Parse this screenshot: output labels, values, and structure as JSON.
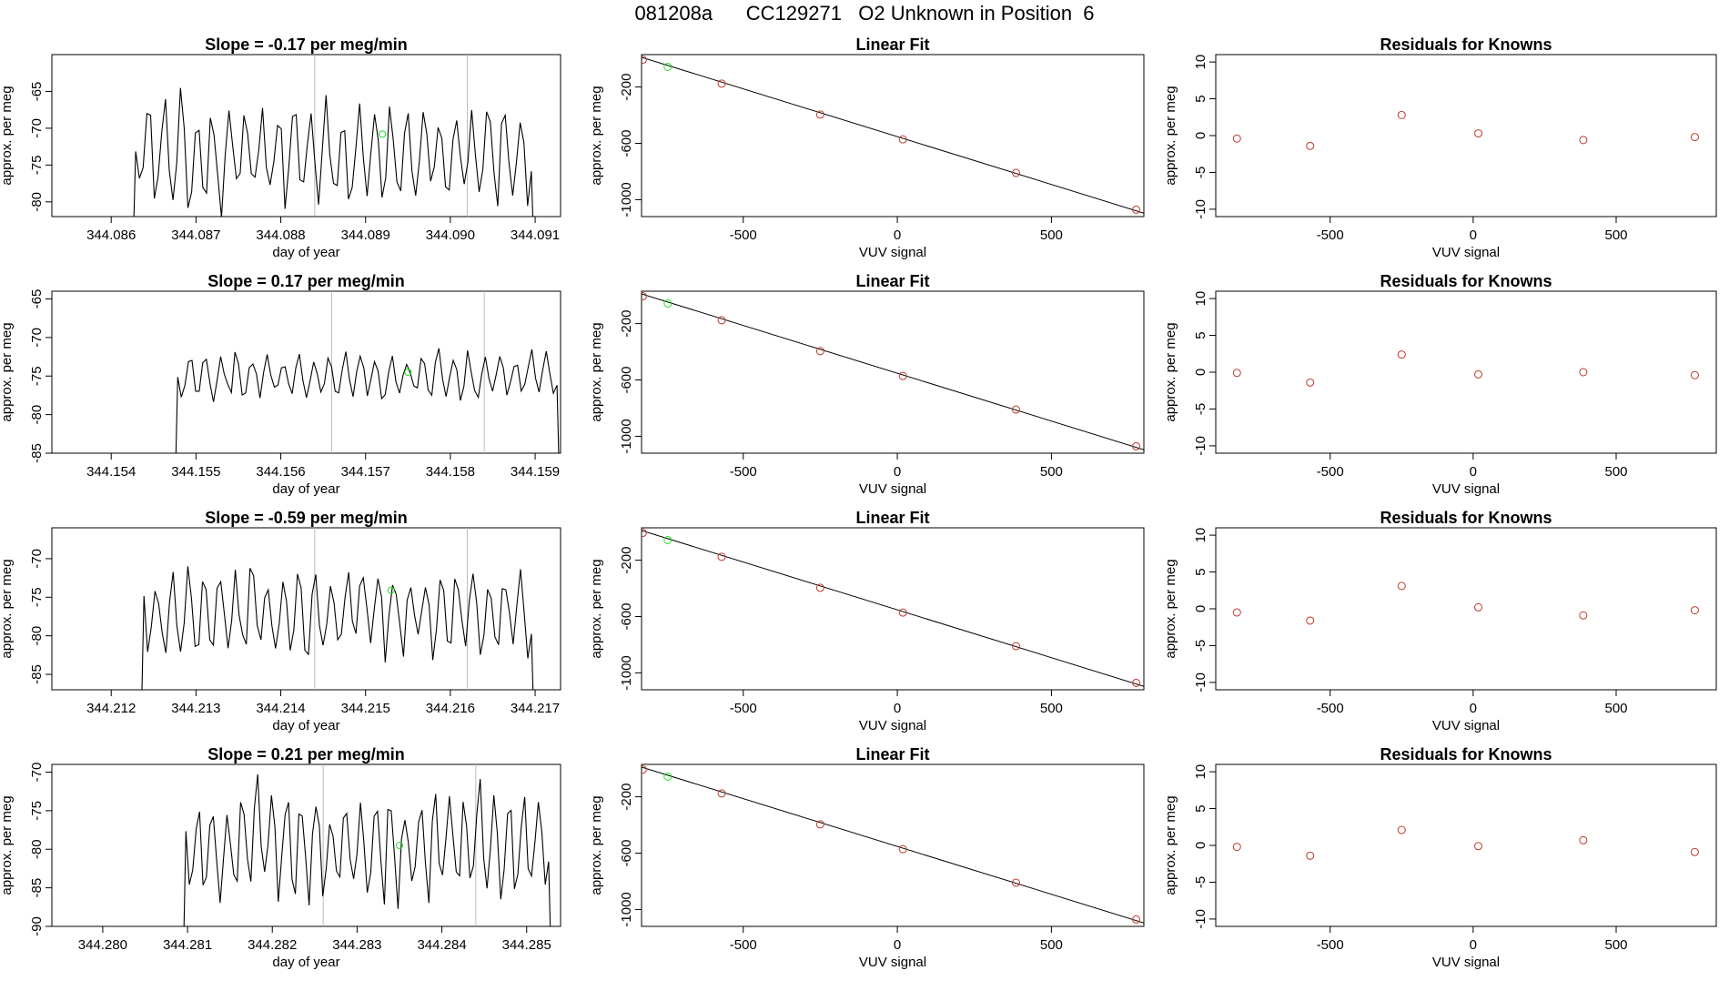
{
  "page_title": "081208a      CC129271   O2 Unknown in Position  6",
  "colors": {
    "trace": "#000000",
    "fit_line": "#000000",
    "known_points": "#c0392b",
    "unknown_point": "#22dd22",
    "vertical_markers": "#bbbbbb"
  },
  "chart_data": [
    {
      "type": "line",
      "row": 1,
      "title": "Slope =  -0.17  per meg/min",
      "xlabel": "day of year",
      "ylabel": "approx. per meg",
      "xlim": [
        344.0853,
        344.0913
      ],
      "ylim": [
        -82,
        -60
      ],
      "x_ticks": [
        344.086,
        344.087,
        344.088,
        344.089,
        344.09,
        344.091
      ],
      "x_tick_labels": [
        "344.086",
        "344.087",
        "344.088",
        "344.089",
        "344.090",
        "344.091"
      ],
      "y_ticks": [
        -80,
        -75,
        -70,
        -65
      ],
      "y_tick_labels": [
        "-80",
        "-75",
        "-70",
        "-65"
      ],
      "x_start": 344.0862,
      "x_end": 344.091,
      "n_points": 110,
      "trace_baseline": -73.5,
      "trace_amplitude": 7,
      "vertical_lines": [
        344.0884,
        344.0902
      ],
      "unknown_point": {
        "x": 344.0892,
        "y": -70.8
      }
    },
    {
      "type": "line",
      "row": 2,
      "title": "Slope =  0.17  per meg/min",
      "xlabel": "day of year",
      "ylabel": "approx. per meg",
      "xlim": [
        344.1533,
        344.1593
      ],
      "ylim": [
        -85,
        -64
      ],
      "x_ticks": [
        344.154,
        344.155,
        344.156,
        344.157,
        344.158,
        344.159
      ],
      "x_tick_labels": [
        "344.154",
        "344.155",
        "344.156",
        "344.157",
        "344.158",
        "344.159"
      ],
      "y_ticks": [
        -85,
        -80,
        -75,
        -70,
        -65
      ],
      "y_tick_labels": [
        "-85",
        "-80",
        "-75",
        "-70",
        "-65"
      ],
      "x_start": 344.1547,
      "x_end": 344.1593,
      "n_points": 110,
      "trace_baseline": -75,
      "trace_amplitude": 3,
      "vertical_lines": [
        344.1566,
        344.1584
      ],
      "unknown_point": {
        "x": 344.1575,
        "y": -74.5
      }
    },
    {
      "type": "line",
      "row": 3,
      "title": "Slope =  -0.59  per meg/min",
      "xlabel": "day of year",
      "ylabel": "approx. per meg",
      "xlim": [
        344.2113,
        344.2173
      ],
      "ylim": [
        -87,
        -66
      ],
      "x_ticks": [
        344.212,
        344.213,
        344.214,
        344.215,
        344.216,
        344.217
      ],
      "x_tick_labels": [
        "344.212",
        "344.213",
        "344.214",
        "344.215",
        "344.216",
        "344.217"
      ],
      "y_ticks": [
        -85,
        -80,
        -75,
        -70
      ],
      "y_tick_labels": [
        "-85",
        "-80",
        "-75",
        "-70"
      ],
      "x_start": 344.2123,
      "x_end": 344.217,
      "n_points": 110,
      "trace_baseline": -77,
      "trace_amplitude": 6,
      "vertical_lines": [
        344.2144,
        344.2162
      ],
      "unknown_point": {
        "x": 344.2153,
        "y": -74.1
      }
    },
    {
      "type": "line",
      "row": 4,
      "title": "Slope =  0.21  per meg/min",
      "xlabel": "day of year",
      "ylabel": "approx. per meg",
      "xlim": [
        344.2794,
        344.2854
      ],
      "ylim": [
        -90,
        -69
      ],
      "x_ticks": [
        344.28,
        344.281,
        344.282,
        344.283,
        344.284,
        344.285
      ],
      "x_tick_labels": [
        "344.280",
        "344.281",
        "344.282",
        "344.283",
        "344.284",
        "344.285"
      ],
      "y_ticks": [
        -90,
        -85,
        -80,
        -75,
        -70
      ],
      "y_tick_labels": [
        "-90",
        "-85",
        "-80",
        "-75",
        "-70"
      ],
      "x_start": 344.2809,
      "x_end": 344.2853,
      "n_points": 110,
      "trace_baseline": -79.5,
      "trace_amplitude": 7,
      "vertical_lines": [
        344.2826,
        344.2844
      ],
      "unknown_point": {
        "x": 344.2835,
        "y": -79.5
      }
    },
    {
      "type": "scatter",
      "row": 1,
      "title": "Linear Fit",
      "xlabel": "VUV signal",
      "ylabel": "approx. per meg",
      "xlim": [
        -830,
        800
      ],
      "ylim": [
        -1120,
        30
      ],
      "x_ticks": [
        -500,
        0,
        500
      ],
      "x_tick_labels": [
        "-500",
        "0",
        "500"
      ],
      "y_ticks": [
        -1000,
        -600,
        -200
      ],
      "y_tick_labels": [
        "-1000",
        "-600",
        "-200"
      ],
      "fit_line": {
        "x": [
          -830,
          800
        ],
        "y": [
          11.05,
          -1095.55
        ]
      },
      "known_points": {
        "x": [
          -826,
          -570,
          -250,
          18,
          385,
          775
        ],
        "y": [
          -6,
          -176,
          -396,
          -572,
          -810,
          -1071
        ]
      },
      "unknown_point": {
        "x": -745,
        "y": -57
      }
    },
    {
      "type": "scatter",
      "row": 2,
      "title": "Linear Fit",
      "xlabel": "VUV signal",
      "ylabel": "approx. per meg",
      "xlim": [
        -830,
        800
      ],
      "ylim": [
        -1120,
        30
      ],
      "x_ticks": [
        -500,
        0,
        500
      ],
      "x_tick_labels": [
        "-500",
        "0",
        "500"
      ],
      "y_ticks": [
        -1000,
        -600,
        -200
      ],
      "y_tick_labels": [
        "-1000",
        "-600",
        "-200"
      ],
      "fit_line": {
        "x": [
          -830,
          800
        ],
        "y": [
          11.05,
          -1095.55
        ]
      },
      "known_points": {
        "x": [
          -826,
          -570,
          -250,
          18,
          385,
          775
        ],
        "y": [
          -6,
          -176,
          -396,
          -572,
          -810,
          -1071
        ]
      },
      "unknown_point": {
        "x": -745,
        "y": -57
      }
    },
    {
      "type": "scatter",
      "row": 3,
      "title": "Linear Fit",
      "xlabel": "VUV signal",
      "ylabel": "approx. per meg",
      "xlim": [
        -830,
        800
      ],
      "ylim": [
        -1120,
        30
      ],
      "x_ticks": [
        -500,
        0,
        500
      ],
      "x_tick_labels": [
        "-500",
        "0",
        "500"
      ],
      "y_ticks": [
        -1000,
        -600,
        -200
      ],
      "y_tick_labels": [
        "-1000",
        "-600",
        "-200"
      ],
      "fit_line": {
        "x": [
          -830,
          800
        ],
        "y": [
          11.05,
          -1095.55
        ]
      },
      "known_points": {
        "x": [
          -826,
          -570,
          -250,
          18,
          385,
          775
        ],
        "y": [
          -6,
          -176,
          -396,
          -572,
          -810,
          -1071
        ]
      },
      "unknown_point": {
        "x": -745,
        "y": -57
      }
    },
    {
      "type": "scatter",
      "row": 4,
      "title": "Linear Fit",
      "xlabel": "VUV signal",
      "ylabel": "approx. per meg",
      "xlim": [
        -830,
        800
      ],
      "ylim": [
        -1120,
        30
      ],
      "x_ticks": [
        -500,
        0,
        500
      ],
      "x_tick_labels": [
        "-500",
        "0",
        "500"
      ],
      "y_ticks": [
        -1000,
        -600,
        -200
      ],
      "y_tick_labels": [
        "-1000",
        "-600",
        "-200"
      ],
      "fit_line": {
        "x": [
          -830,
          800
        ],
        "y": [
          11.05,
          -1095.55
        ]
      },
      "known_points": {
        "x": [
          -826,
          -570,
          -250,
          18,
          385,
          775
        ],
        "y": [
          -6,
          -176,
          -396,
          -572,
          -810,
          -1071
        ]
      },
      "unknown_point": {
        "x": -745,
        "y": -57
      }
    },
    {
      "type": "scatter",
      "row": 1,
      "title": "Residuals for Knowns",
      "xlabel": "VUV signal",
      "ylabel": "approx. per meg",
      "xlim": [
        -900,
        850
      ],
      "ylim": [
        -11,
        11
      ],
      "x_ticks": [
        -500,
        0,
        500
      ],
      "x_tick_labels": [
        "-500",
        "0",
        "500"
      ],
      "y_ticks": [
        -10,
        -5,
        0,
        5,
        10
      ],
      "y_tick_labels": [
        "-10",
        "-5",
        "0",
        "5",
        "10"
      ],
      "known_points": {
        "x": [
          -826,
          -570,
          -250,
          18,
          385,
          775
        ],
        "y": [
          -0.4,
          -1.4,
          2.8,
          0.3,
          -0.6,
          -0.2
        ]
      }
    },
    {
      "type": "scatter",
      "row": 2,
      "title": "Residuals for Knowns",
      "xlabel": "VUV signal",
      "ylabel": "approx. per meg",
      "xlim": [
        -900,
        850
      ],
      "ylim": [
        -11,
        11
      ],
      "x_ticks": [
        -500,
        0,
        500
      ],
      "x_tick_labels": [
        "-500",
        "0",
        "500"
      ],
      "y_ticks": [
        -10,
        -5,
        0,
        5,
        10
      ],
      "y_tick_labels": [
        "-10",
        "-5",
        "0",
        "5",
        "10"
      ],
      "known_points": {
        "x": [
          -826,
          -570,
          -250,
          18,
          385,
          775
        ],
        "y": [
          -0.1,
          -1.4,
          2.4,
          -0.3,
          0.0,
          -0.4
        ]
      }
    },
    {
      "type": "scatter",
      "row": 3,
      "title": "Residuals for Knowns",
      "xlabel": "VUV signal",
      "ylabel": "approx. per meg",
      "xlim": [
        -900,
        850
      ],
      "ylim": [
        -11,
        11
      ],
      "x_ticks": [
        -500,
        0,
        500
      ],
      "x_tick_labels": [
        "-500",
        "0",
        "500"
      ],
      "y_ticks": [
        -10,
        -5,
        0,
        5,
        10
      ],
      "y_tick_labels": [
        "-10",
        "-5",
        "0",
        "5",
        "10"
      ],
      "known_points": {
        "x": [
          -826,
          -570,
          -250,
          18,
          385,
          775
        ],
        "y": [
          -0.5,
          -1.6,
          3.1,
          0.2,
          -0.9,
          -0.2
        ]
      }
    },
    {
      "type": "scatter",
      "row": 4,
      "title": "Residuals for Knowns",
      "xlabel": "VUV signal",
      "ylabel": "approx. per meg",
      "xlim": [
        -900,
        850
      ],
      "ylim": [
        -11,
        11
      ],
      "x_ticks": [
        -500,
        0,
        500
      ],
      "x_tick_labels": [
        "-500",
        "0",
        "500"
      ],
      "y_ticks": [
        -10,
        -5,
        0,
        5,
        10
      ],
      "y_tick_labels": [
        "-10",
        "-5",
        "0",
        "5",
        "10"
      ],
      "known_points": {
        "x": [
          -826,
          -570,
          -250,
          18,
          385,
          775
        ],
        "y": [
          -0.2,
          -1.4,
          2.1,
          -0.1,
          0.7,
          -0.9
        ]
      }
    }
  ]
}
